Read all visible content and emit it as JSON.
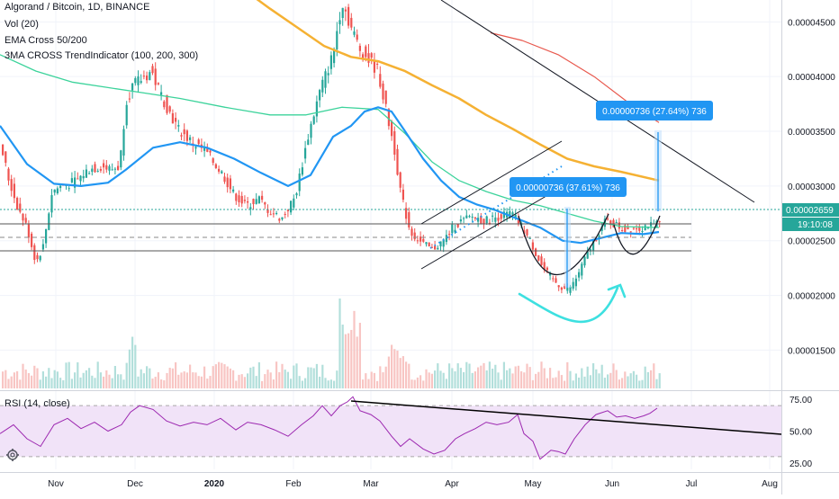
{
  "legend": {
    "symbol": "Algorand / Bitcoin, 1D, BINANCE",
    "volume": "Vol (20)",
    "ema": "EMA Cross 50/200",
    "ma3": "3MA CROSS TrendIndicator (100, 200, 300)"
  },
  "price_axis": {
    "ticks": [
      "0.00004500",
      "0.00004000",
      "0.00003500",
      "0.00003000",
      "0.00002500",
      "0.00002000",
      "0.00001500"
    ],
    "last_price": "0.00002659",
    "countdown": "19:10:08"
  },
  "rsi": {
    "label": "RSI (14, close)",
    "ticks": [
      "75.00",
      "50.00",
      "25.00"
    ]
  },
  "time_axis": {
    "labels": [
      "Nov",
      "Dec",
      "2020",
      "Feb",
      "Mar",
      "Apr",
      "May",
      "Jun",
      "Jul",
      "Aug"
    ]
  },
  "annotations": {
    "measure_left": "0.00000736 (37.61%) 736",
    "measure_right": "0.00000736 (27.64%) 736"
  },
  "colors": {
    "up": "#26a69a",
    "down": "#ef5350",
    "ema_fast": "#2196f3",
    "ema_green": "#3cd39b",
    "ma_orange": "#f5b133",
    "ma_red": "#e8584d",
    "rsi_line": "#9c27b0",
    "rsi_band": "#f1e3f8",
    "measure": "#2196f3",
    "arrow": "#3de0e0"
  },
  "chart_data": {
    "type": "candlestick",
    "title": "Algorand / Bitcoin, 1D, BINANCE",
    "ylim": [
      1.15e-05,
      4.7e-05
    ],
    "rsi_ylim": [
      20,
      80
    ],
    "anchors": [
      [
        0,
        3.48e-05
      ],
      [
        12,
        3.05e-05
      ],
      [
        22,
        2.8e-05
      ],
      [
        32,
        2.62e-05
      ],
      [
        42,
        2.3e-05
      ],
      [
        50,
        2.45e-05
      ],
      [
        60,
        2.95e-05
      ],
      [
        70,
        3e-05
      ],
      [
        80,
        3.02e-05
      ],
      [
        90,
        3.07e-05
      ],
      [
        100,
        3.15e-05
      ],
      [
        115,
        3.18e-05
      ],
      [
        125,
        3.15e-05
      ],
      [
        135,
        3.18e-05
      ],
      [
        142,
        3.78e-05
      ],
      [
        150,
        3.92e-05
      ],
      [
        160,
        3.98e-05
      ],
      [
        170,
        4.05e-05
      ],
      [
        180,
        3.85e-05
      ],
      [
        190,
        3.68e-05
      ],
      [
        200,
        3.52e-05
      ],
      [
        215,
        3.4e-05
      ],
      [
        230,
        3.32e-05
      ],
      [
        250,
        3.1e-05
      ],
      [
        262,
        2.92e-05
      ],
      [
        275,
        2.82e-05
      ],
      [
        290,
        2.88e-05
      ],
      [
        300,
        2.78e-05
      ],
      [
        315,
        2.7e-05
      ],
      [
        330,
        2.9e-05
      ],
      [
        345,
        3.48e-05
      ],
      [
        358,
        3.88e-05
      ],
      [
        372,
        4.2e-05
      ],
      [
        382,
        4.7e-05
      ],
      [
        392,
        4.45e-05
      ],
      [
        402,
        4.25e-05
      ],
      [
        412,
        4.15e-05
      ],
      [
        422,
        4.05e-05
      ],
      [
        432,
        3.65e-05
      ],
      [
        440,
        3.35e-05
      ],
      [
        448,
        2.9e-05
      ],
      [
        458,
        2.58e-05
      ],
      [
        470,
        2.48e-05
      ],
      [
        482,
        2.42e-05
      ],
      [
        495,
        2.5e-05
      ],
      [
        505,
        2.62e-05
      ],
      [
        515,
        2.68e-05
      ],
      [
        528,
        2.72e-05
      ],
      [
        540,
        2.68e-05
      ],
      [
        555,
        2.72e-05
      ],
      [
        570,
        2.75e-05
      ],
      [
        580,
        2.65e-05
      ],
      [
        592,
        2.48e-05
      ],
      [
        605,
        2.25e-05
      ],
      [
        615,
        2.15e-05
      ],
      [
        625,
        2.08e-05
      ],
      [
        632,
        2.05e-05
      ],
      [
        640,
        2.12e-05
      ],
      [
        650,
        2.3e-05
      ],
      [
        662,
        2.5e-05
      ],
      [
        675,
        2.68e-05
      ],
      [
        685,
        2.65e-05
      ],
      [
        695,
        2.6e-05
      ],
      [
        705,
        2.62e-05
      ],
      [
        715,
        2.62e-05
      ],
      [
        722,
        2.65e-05
      ],
      [
        728,
        2.62e-05
      ],
      [
        732,
        2.66e-05
      ]
    ],
    "ema_fast": [
      [
        0,
        3.55e-05
      ],
      [
        30,
        3.2e-05
      ],
      [
        60,
        3.02e-05
      ],
      [
        90,
        3e-05
      ],
      [
        120,
        3.03e-05
      ],
      [
        140,
        3.15e-05
      ],
      [
        170,
        3.35e-05
      ],
      [
        200,
        3.4e-05
      ],
      [
        230,
        3.35e-05
      ],
      [
        260,
        3.25e-05
      ],
      [
        290,
        3.12e-05
      ],
      [
        320,
        3e-05
      ],
      [
        345,
        3.1e-05
      ],
      [
        370,
        3.45e-05
      ],
      [
        390,
        3.55e-05
      ],
      [
        405,
        3.68e-05
      ],
      [
        420,
        3.72e-05
      ],
      [
        435,
        3.68e-05
      ],
      [
        450,
        3.5e-05
      ],
      [
        470,
        3.25e-05
      ],
      [
        490,
        3.05e-05
      ],
      [
        510,
        2.9e-05
      ],
      [
        530,
        2.83e-05
      ],
      [
        550,
        2.78e-05
      ],
      [
        575,
        2.7e-05
      ],
      [
        600,
        2.62e-05
      ],
      [
        625,
        2.5e-05
      ],
      [
        645,
        2.48e-05
      ],
      [
        665,
        2.52e-05
      ],
      [
        690,
        2.57e-05
      ],
      [
        715,
        2.56e-05
      ],
      [
        732,
        2.58e-05
      ]
    ],
    "ema_slow": [
      [
        0,
        4.2e-05
      ],
      [
        40,
        4.05e-05
      ],
      [
        80,
        3.95e-05
      ],
      [
        120,
        3.9e-05
      ],
      [
        160,
        3.85e-05
      ],
      [
        200,
        3.8e-05
      ],
      [
        250,
        3.72e-05
      ],
      [
        300,
        3.65e-05
      ],
      [
        340,
        3.65e-05
      ],
      [
        380,
        3.72e-05
      ],
      [
        420,
        3.7e-05
      ],
      [
        450,
        3.48e-05
      ],
      [
        480,
        3.22e-05
      ],
      [
        510,
        3.05e-05
      ],
      [
        540,
        2.95e-05
      ],
      [
        570,
        2.87e-05
      ],
      [
        600,
        2.82e-05
      ],
      [
        630,
        2.75e-05
      ],
      [
        660,
        2.68e-05
      ],
      [
        690,
        2.63e-05
      ],
      [
        732,
        2.62e-05
      ]
    ],
    "ma_orange": [
      [
        270,
        4.8e-05
      ],
      [
        300,
        4.62e-05
      ],
      [
        330,
        4.45e-05
      ],
      [
        360,
        4.28e-05
      ],
      [
        390,
        4.18e-05
      ],
      [
        420,
        4.14e-05
      ],
      [
        450,
        4.05e-05
      ],
      [
        480,
        3.92e-05
      ],
      [
        510,
        3.8e-05
      ],
      [
        540,
        3.65e-05
      ],
      [
        570,
        3.52e-05
      ],
      [
        600,
        3.38e-05
      ],
      [
        630,
        3.25e-05
      ],
      [
        660,
        3.18e-05
      ],
      [
        690,
        3.13e-05
      ],
      [
        732,
        3.05e-05
      ]
    ],
    "ma_red": [
      [
        545,
        4.4e-05
      ],
      [
        580,
        4.33e-05
      ],
      [
        620,
        4.2e-05
      ],
      [
        660,
        4e-05
      ],
      [
        700,
        3.75e-05
      ],
      [
        732,
        3.58e-05
      ]
    ],
    "rsi": [
      [
        0,
        48
      ],
      [
        15,
        55
      ],
      [
        30,
        44
      ],
      [
        45,
        38
      ],
      [
        60,
        55
      ],
      [
        75,
        60
      ],
      [
        90,
        52
      ],
      [
        105,
        57
      ],
      [
        120,
        50
      ],
      [
        135,
        55
      ],
      [
        145,
        65
      ],
      [
        155,
        70
      ],
      [
        170,
        67
      ],
      [
        185,
        58
      ],
      [
        200,
        54
      ],
      [
        215,
        57
      ],
      [
        230,
        55
      ],
      [
        245,
        60
      ],
      [
        262,
        51
      ],
      [
        275,
        57
      ],
      [
        290,
        55
      ],
      [
        305,
        51
      ],
      [
        320,
        46
      ],
      [
        335,
        55
      ],
      [
        348,
        62
      ],
      [
        358,
        70
      ],
      [
        368,
        62
      ],
      [
        378,
        70
      ],
      [
        386,
        73
      ],
      [
        392,
        77
      ],
      [
        400,
        66
      ],
      [
        412,
        63
      ],
      [
        422,
        58
      ],
      [
        435,
        46
      ],
      [
        445,
        38
      ],
      [
        455,
        44
      ],
      [
        470,
        36
      ],
      [
        482,
        32
      ],
      [
        494,
        35
      ],
      [
        506,
        44
      ],
      [
        516,
        48
      ],
      [
        528,
        52
      ],
      [
        540,
        57
      ],
      [
        552,
        55
      ],
      [
        565,
        57
      ],
      [
        575,
        63
      ],
      [
        582,
        48
      ],
      [
        592,
        42
      ],
      [
        600,
        28
      ],
      [
        612,
        35
      ],
      [
        620,
        34
      ],
      [
        628,
        32
      ],
      [
        638,
        44
      ],
      [
        650,
        55
      ],
      [
        662,
        63
      ],
      [
        675,
        66
      ],
      [
        685,
        61
      ],
      [
        695,
        62
      ],
      [
        705,
        60
      ],
      [
        715,
        62
      ],
      [
        722,
        64
      ],
      [
        730,
        68
      ]
    ],
    "volume_ymax": 1,
    "volume_seed": 7
  }
}
